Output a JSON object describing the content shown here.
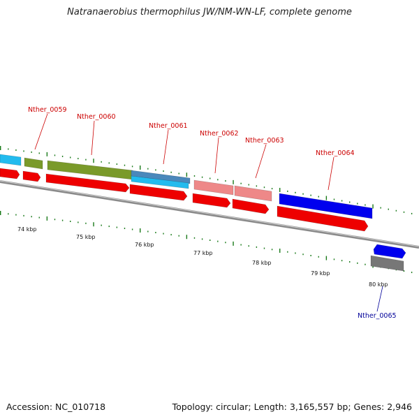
{
  "header": {
    "title": "Natranaerobius thermophilus JW/NM-WN-LF, complete genome"
  },
  "footer": {
    "accession": "Accession: NC_010718",
    "stats": "Topology: circular; Length: 3,165,557 bp; Genes: 2,946"
  },
  "scale": {
    "labels": [
      "74 kbp",
      "75 kbp",
      "76 kbp",
      "77 kbp",
      "78 kbp",
      "79 kbp",
      "80 kbp"
    ]
  },
  "genes": [
    {
      "label": "Nther_0059",
      "label_color": "#cc0000"
    },
    {
      "label": "Nther_0060",
      "label_color": "#cc0000"
    },
    {
      "label": "Nther_0061",
      "label_color": "#cc0000"
    },
    {
      "label": "Nther_0062",
      "label_color": "#cc0000"
    },
    {
      "label": "Nther_0063",
      "label_color": "#cc0000"
    },
    {
      "label": "Nther_0064",
      "label_color": "#cc0000"
    },
    {
      "label": "Nther_0065",
      "label_color": "#000099"
    }
  ],
  "colors": {
    "cds": "#ee0000",
    "cyan": "#22bbee",
    "olive": "#7a9a2a",
    "steel": "#4a88bb",
    "pink": "#ee8888",
    "blue": "#0000ee",
    "grey": "#777777",
    "backbone": "#888888",
    "dot": "#1a7a1a"
  }
}
